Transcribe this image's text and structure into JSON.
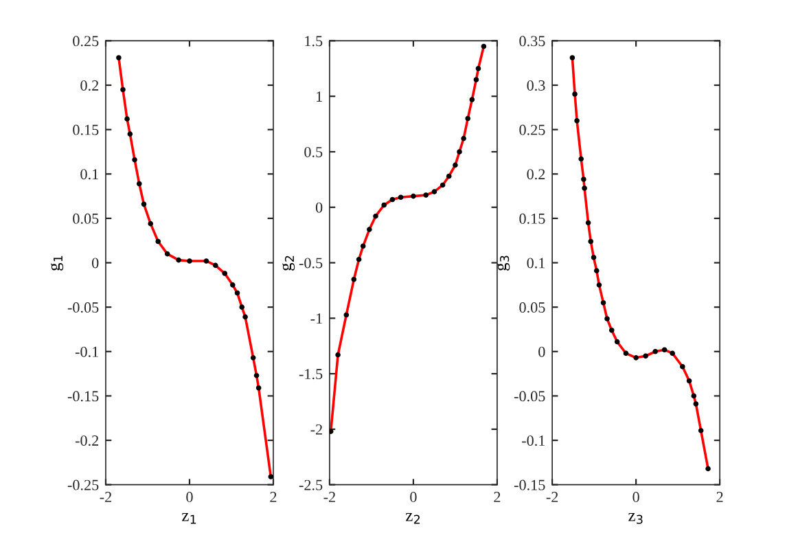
{
  "chart_data": [
    {
      "type": "line",
      "xlabel": "z$_{1}$",
      "ylabel": "g$_{1}$",
      "xlim": [
        -2,
        2
      ],
      "xticks": [
        -2,
        0,
        2
      ],
      "ylim": [
        -0.25,
        0.25
      ],
      "yticks": [
        -0.25,
        -0.2,
        -0.15,
        -0.1,
        -0.05,
        0,
        0.05,
        0.1,
        0.15,
        0.2,
        0.25
      ],
      "grid": false,
      "legend": false,
      "x": [
        -1.69,
        -1.59,
        -1.49,
        -1.42,
        -1.31,
        -1.2,
        -1.09,
        -0.93,
        -0.75,
        -0.53,
        -0.26,
        0,
        0.4,
        0.62,
        0.84,
        1.03,
        1.14,
        1.25,
        1.33,
        1.52,
        1.6,
        1.65,
        1.94
      ],
      "series": [
        {
          "color": "#ff0000",
          "marker": "none",
          "line_style": "solid",
          "values": [
            0.231,
            0.195,
            0.162,
            0.145,
            0.116,
            0.089,
            0.066,
            0.044,
            0.024,
            0.01,
            0.003,
            0.002,
            0.002,
            -0.003,
            -0.012,
            -0.025,
            -0.034,
            -0.05,
            -0.061,
            -0.107,
            -0.127,
            -0.141,
            -0.241
          ]
        },
        {
          "type": "scatter",
          "color": "#000000",
          "marker": "circle",
          "values": [
            0.231,
            0.195,
            0.162,
            0.145,
            0.116,
            0.089,
            0.066,
            0.044,
            0.024,
            0.01,
            0.003,
            0.002,
            0.002,
            -0.003,
            -0.012,
            -0.025,
            -0.034,
            -0.05,
            -0.061,
            -0.107,
            -0.127,
            -0.141,
            -0.241
          ]
        }
      ]
    },
    {
      "type": "line",
      "xlabel": "z$_{2}$",
      "ylabel": "g$_{2}$",
      "xlim": [
        -2,
        2
      ],
      "xticks": [
        -2,
        0,
        2
      ],
      "ylim": [
        -2.5,
        1.5
      ],
      "yticks": [
        -2.5,
        -2,
        -1.5,
        -1,
        -0.5,
        0,
        0.5,
        1,
        1.5
      ],
      "grid": false,
      "legend": false,
      "x": [
        -1.97,
        -1.8,
        -1.6,
        -1.42,
        -1.3,
        -1.2,
        -1.05,
        -0.9,
        -0.7,
        -0.5,
        -0.3,
        0,
        0.3,
        0.5,
        0.7,
        0.85,
        1.0,
        1.1,
        1.2,
        1.3,
        1.4,
        1.5,
        1.55,
        1.68
      ],
      "series": [
        {
          "color": "#ff0000",
          "marker": "none",
          "line_style": "solid",
          "values": [
            -2.02,
            -1.33,
            -0.97,
            -0.65,
            -0.47,
            -0.35,
            -0.2,
            -0.08,
            0.02,
            0.07,
            0.09,
            0.1,
            0.11,
            0.14,
            0.2,
            0.28,
            0.38,
            0.5,
            0.62,
            0.8,
            0.97,
            1.15,
            1.25,
            1.45
          ]
        },
        {
          "type": "scatter",
          "color": "#000000",
          "marker": "circle",
          "values": [
            -2.02,
            -1.33,
            -0.97,
            -0.65,
            -0.47,
            -0.35,
            -0.2,
            -0.08,
            0.02,
            0.07,
            0.09,
            0.1,
            0.11,
            0.14,
            0.2,
            0.28,
            0.38,
            0.5,
            0.62,
            0.8,
            0.97,
            1.15,
            1.25,
            1.45
          ]
        }
      ]
    },
    {
      "type": "line",
      "xlabel": "z$_{3}$",
      "ylabel": "g$_{3}$",
      "xlim": [
        -2,
        2
      ],
      "xticks": [
        -2,
        0,
        2
      ],
      "ylim": [
        -0.15,
        0.35
      ],
      "yticks": [
        -0.15,
        -0.1,
        -0.05,
        0,
        0.05,
        0.1,
        0.15,
        0.2,
        0.25,
        0.3,
        0.35
      ],
      "grid": false,
      "legend": false,
      "x": [
        -1.52,
        -1.46,
        -1.41,
        -1.31,
        -1.25,
        -1.23,
        -1.14,
        -1.08,
        -1.01,
        -0.94,
        -0.88,
        -0.78,
        -0.69,
        -0.58,
        -0.45,
        -0.24,
        0,
        0.23,
        0.46,
        0.68,
        0.87,
        1.11,
        1.27,
        1.38,
        1.43,
        1.55,
        1.72
      ],
      "series": [
        {
          "color": "#ff0000",
          "marker": "none",
          "line_style": "solid",
          "values": [
            0.331,
            0.29,
            0.26,
            0.217,
            0.194,
            0.184,
            0.145,
            0.124,
            0.106,
            0.091,
            0.075,
            0.055,
            0.037,
            0.024,
            0.011,
            -0.002,
            -0.007,
            -0.005,
            0,
            0.002,
            -0.002,
            -0.017,
            -0.033,
            -0.05,
            -0.059,
            -0.089,
            -0.132
          ]
        },
        {
          "type": "scatter",
          "color": "#000000",
          "marker": "circle",
          "values": [
            0.331,
            0.29,
            0.26,
            0.217,
            0.194,
            0.184,
            0.145,
            0.124,
            0.106,
            0.091,
            0.075,
            0.055,
            0.037,
            0.024,
            0.011,
            -0.002,
            -0.007,
            -0.005,
            0,
            0.002,
            -0.002,
            -0.017,
            -0.033,
            -0.05,
            -0.059,
            -0.089,
            -0.132
          ]
        }
      ]
    }
  ]
}
